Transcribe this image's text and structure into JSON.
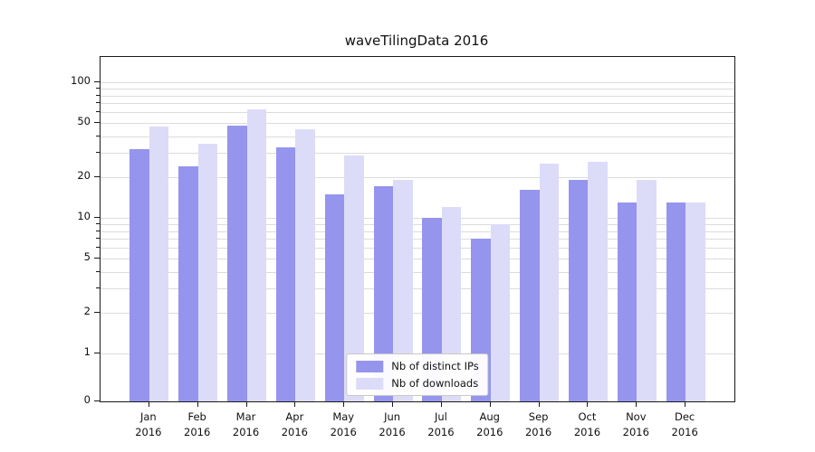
{
  "title": "waveTilingData 2016",
  "chart_data": {
    "type": "bar",
    "scale": "symlog",
    "title": "waveTilingData 2016",
    "xlabel": "",
    "ylabel": "",
    "categories": [
      "Jan",
      "Feb",
      "Mar",
      "Apr",
      "May",
      "Jun",
      "Jul",
      "Aug",
      "Sep",
      "Oct",
      "Nov",
      "Dec"
    ],
    "year": "2016",
    "series": [
      {
        "name": "Nb of distinct IPs",
        "color": "#9595ee",
        "values": [
          32,
          24,
          48,
          33,
          15,
          17,
          10,
          7,
          16,
          19,
          13,
          13
        ]
      },
      {
        "name": "Nb of downloads",
        "color": "#dcdcf8",
        "values": [
          47,
          35,
          63,
          45,
          29,
          19,
          12,
          9,
          25,
          26,
          19,
          13
        ]
      }
    ],
    "yticks": [
      0,
      1,
      2,
      5,
      10,
      20,
      50,
      100
    ],
    "gridlines": [
      1,
      2,
      3,
      4,
      5,
      6,
      7,
      8,
      9,
      10,
      20,
      30,
      40,
      50,
      60,
      70,
      80,
      90,
      100
    ],
    "ylim": [
      0,
      150
    ],
    "grid": "on",
    "legend_position": "lower center"
  }
}
